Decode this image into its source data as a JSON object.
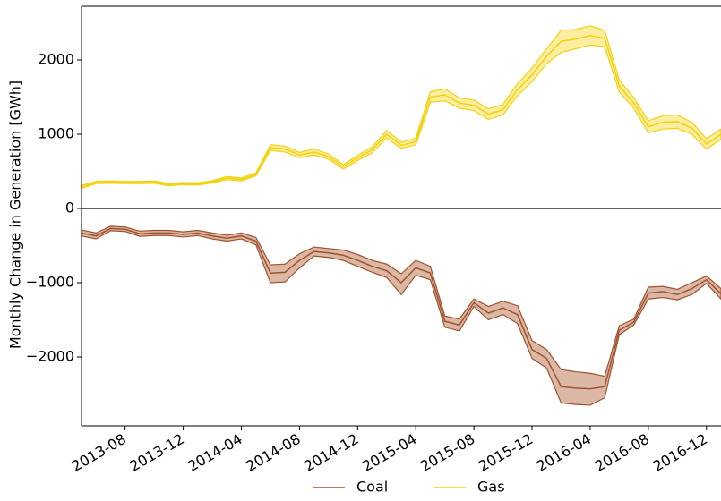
{
  "chart_data": {
    "type": "line",
    "ylabel": "Monthly Change in Generation [GWh]",
    "x": [
      "2013-05",
      "2013-06",
      "2013-07",
      "2013-08",
      "2013-09",
      "2013-10",
      "2013-11",
      "2013-12",
      "2014-01",
      "2014-02",
      "2014-03",
      "2014-04",
      "2014-05",
      "2014-06",
      "2014-07",
      "2014-08",
      "2014-09",
      "2014-10",
      "2014-11",
      "2014-12",
      "2015-01",
      "2015-02",
      "2015-03",
      "2015-04",
      "2015-05",
      "2015-06",
      "2015-07",
      "2015-08",
      "2015-09",
      "2015-10",
      "2015-11",
      "2015-12",
      "2016-01",
      "2016-02",
      "2016-03",
      "2016-04",
      "2016-05",
      "2016-06",
      "2016-07",
      "2016-08",
      "2016-09",
      "2016-10",
      "2016-11",
      "2016-12",
      "2017-01"
    ],
    "xlim": [
      "2013-05",
      "2017-01"
    ],
    "xticks": [
      "2013-08",
      "2013-12",
      "2014-04",
      "2014-08",
      "2014-12",
      "2015-04",
      "2015-08",
      "2015-12",
      "2016-04",
      "2016-08",
      "2016-12"
    ],
    "ylim": [
      -2928,
      2723
    ],
    "yticks": [
      {
        "value": -2000,
        "label": "−2000"
      },
      {
        "value": -1000,
        "label": "−1000"
      },
      0,
      1000,
      2000
    ],
    "legend": "bottom",
    "series": [
      {
        "name": "Coal",
        "color": "#a0522d",
        "band_color": "#d2a58f",
        "values": [
          -330,
          -370,
          -270,
          -280,
          -340,
          -330,
          -330,
          -350,
          -330,
          -370,
          -400,
          -370,
          -440,
          -870,
          -860,
          -700,
          -580,
          -600,
          -630,
          -700,
          -780,
          -840,
          -1000,
          -800,
          -870,
          -1520,
          -1570,
          -1270,
          -1410,
          -1340,
          -1430,
          -1900,
          -2020,
          -2400,
          -2420,
          -2430,
          -2400,
          -1640,
          -1530,
          -1140,
          -1120,
          -1160,
          -1080,
          -960,
          -1150
        ],
        "lower": [
          -370,
          -410,
          -300,
          -310,
          -375,
          -365,
          -365,
          -385,
          -365,
          -410,
          -440,
          -410,
          -490,
          -1000,
          -990,
          -800,
          -640,
          -660,
          -700,
          -780,
          -860,
          -930,
          -1160,
          -900,
          -960,
          -1600,
          -1650,
          -1320,
          -1500,
          -1430,
          -1550,
          -2020,
          -2150,
          -2620,
          -2640,
          -2650,
          -2550,
          -1700,
          -1570,
          -1220,
          -1200,
          -1230,
          -1160,
          -1010,
          -1220
        ],
        "upper": [
          -290,
          -330,
          -240,
          -250,
          -305,
          -295,
          -295,
          -315,
          -295,
          -330,
          -360,
          -330,
          -390,
          -760,
          -750,
          -610,
          -520,
          -540,
          -560,
          -620,
          -700,
          -750,
          -880,
          -700,
          -780,
          -1450,
          -1490,
          -1220,
          -1320,
          -1250,
          -1310,
          -1780,
          -1900,
          -2170,
          -2200,
          -2220,
          -2260,
          -1580,
          -1490,
          -1060,
          -1050,
          -1090,
          -1000,
          -910,
          -1080
        ]
      },
      {
        "name": "Gas",
        "color": "#f2d20c",
        "band_color": "#fbe98a",
        "values": [
          290,
          350,
          355,
          350,
          350,
          355,
          320,
          335,
          330,
          360,
          410,
          390,
          460,
          820,
          800,
          720,
          760,
          700,
          560,
          680,
          790,
          1000,
          850,
          900,
          1500,
          1530,
          1420,
          1390,
          1270,
          1330,
          1600,
          1800,
          2050,
          2250,
          2280,
          2330,
          2290,
          1650,
          1420,
          1100,
          1160,
          1170,
          1080,
          870,
          1000
        ],
        "lower": [
          270,
          335,
          340,
          335,
          335,
          340,
          305,
          320,
          315,
          345,
          390,
          370,
          440,
          780,
          760,
          685,
          720,
          665,
          530,
          645,
          750,
          950,
          810,
          855,
          1430,
          1450,
          1350,
          1320,
          1200,
          1260,
          1520,
          1710,
          1950,
          2100,
          2150,
          2200,
          2180,
          1570,
          1350,
          1020,
          1070,
          1080,
          1000,
          800,
          930
        ],
        "upper": [
          310,
          365,
          370,
          365,
          365,
          370,
          335,
          350,
          345,
          375,
          430,
          410,
          480,
          860,
          840,
          755,
          800,
          735,
          590,
          715,
          830,
          1050,
          890,
          945,
          1570,
          1610,
          1490,
          1460,
          1340,
          1400,
          1680,
          1890,
          2150,
          2400,
          2410,
          2460,
          2400,
          1730,
          1490,
          1180,
          1250,
          1260,
          1160,
          940,
          1070
        ]
      }
    ]
  }
}
